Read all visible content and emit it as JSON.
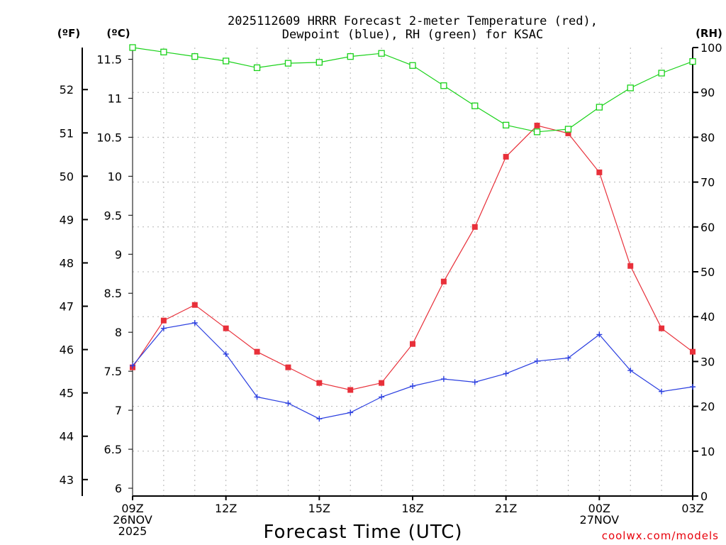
{
  "chart_data": {
    "type": "line",
    "title": "2025112609 HRRR Forecast 2-meter Temperature (red),",
    "subtitle": "Dewpoint (blue), RH (green) for KSAC",
    "xlabel": "Forecast Time (UTC)",
    "credit": "coolwx.com/models",
    "units": {
      "fahrenheit": "(ºF)",
      "celsius": "(ºC)",
      "rh": "(RH)"
    },
    "x_hours": [
      0,
      1,
      2,
      3,
      4,
      5,
      6,
      7,
      8,
      9,
      10,
      11,
      12,
      13,
      14,
      15,
      16,
      17,
      18
    ],
    "x_ticks": [
      {
        "hour": 0,
        "lines": [
          "09Z",
          "26NOV",
          "2025"
        ]
      },
      {
        "hour": 3,
        "lines": [
          "12Z"
        ]
      },
      {
        "hour": 6,
        "lines": [
          "15Z"
        ]
      },
      {
        "hour": 9,
        "lines": [
          "18Z"
        ]
      },
      {
        "hour": 12,
        "lines": [
          "21Z"
        ]
      },
      {
        "hour": 15,
        "lines": [
          "00Z",
          "27NOV"
        ]
      },
      {
        "hour": 18,
        "lines": [
          "03Z"
        ]
      }
    ],
    "xlim": [
      0,
      18
    ],
    "celsius_axis": {
      "ylim": [
        5.9,
        11.65
      ],
      "ticks": [
        "6",
        "6.5",
        "7",
        "7.5",
        "8",
        "8.5",
        "9",
        "9.5",
        "10",
        "10.5",
        "11",
        "11.5"
      ]
    },
    "fahrenheit_axis": {
      "ticks": [
        "43",
        "44",
        "45",
        "46",
        "47",
        "48",
        "49",
        "50",
        "51",
        "52"
      ]
    },
    "rh_axis": {
      "ylim": [
        0,
        100
      ],
      "ticks": [
        "0",
        "10",
        "20",
        "30",
        "40",
        "50",
        "60",
        "70",
        "80",
        "90",
        "100"
      ]
    },
    "series": [
      {
        "name": "Temperature",
        "color": "#e8303a",
        "marker": "filled-square",
        "axis": "celsius",
        "values": [
          7.55,
          8.15,
          8.35,
          8.05,
          7.75,
          7.55,
          7.35,
          7.26,
          7.35,
          7.85,
          8.65,
          9.35,
          10.25,
          10.65,
          10.55,
          10.05,
          8.85,
          8.05,
          7.75
        ]
      },
      {
        "name": "Dewpoint",
        "color": "#2b3fe0",
        "marker": "plus",
        "axis": "celsius",
        "values": [
          7.57,
          8.05,
          8.12,
          7.72,
          7.17,
          7.09,
          6.89,
          6.97,
          7.17,
          7.31,
          7.4,
          7.36,
          7.47,
          7.63,
          7.67,
          7.97,
          7.51,
          7.24,
          7.3
        ]
      },
      {
        "name": "RH",
        "color": "#1ad21a",
        "marker": "open-square",
        "axis": "rh",
        "values": [
          100,
          99,
          98,
          97,
          95.5,
          96.5,
          96.7,
          98,
          98.7,
          96,
          91.5,
          87,
          82.7,
          81.2,
          81.8,
          86.7,
          91,
          94.3,
          96.9
        ]
      }
    ]
  }
}
